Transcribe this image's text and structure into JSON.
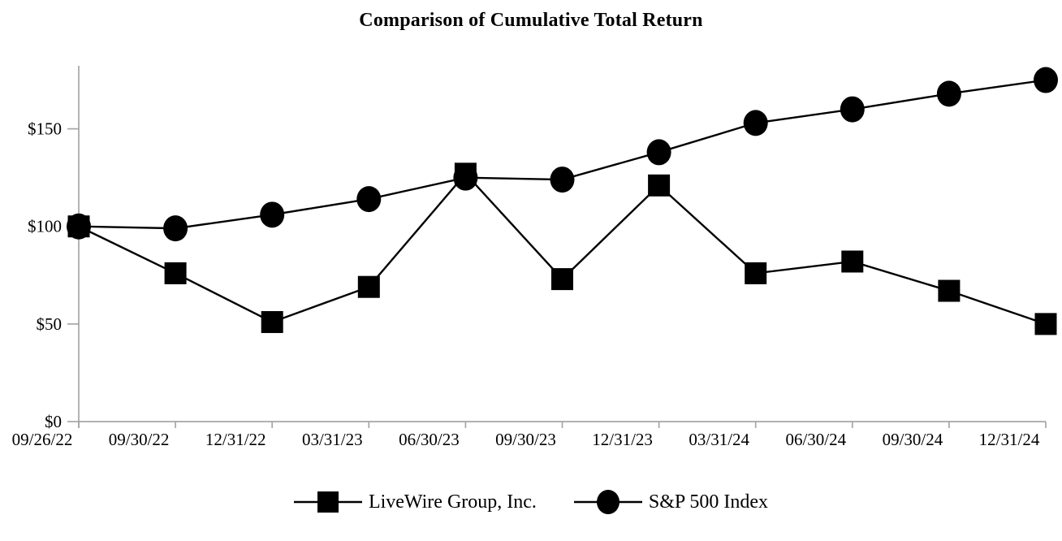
{
  "title": "Comparison of Cumulative Total Return",
  "chart_data": {
    "type": "line",
    "title": "Comparison of Cumulative Total Return",
    "categories": [
      "09/26/22",
      "09/30/22",
      "12/31/22",
      "03/31/23",
      "06/30/23",
      "09/30/23",
      "12/31/23",
      "03/31/24",
      "06/30/24",
      "09/30/24",
      "12/31/24"
    ],
    "series": [
      {
        "name": "LiveWire Group, Inc.",
        "marker": "square",
        "values": [
          100,
          76,
          51,
          69,
          127,
          73,
          121,
          76,
          82,
          67,
          50
        ]
      },
      {
        "name": "S&P 500 Index",
        "marker": "circle",
        "values": [
          100,
          99,
          106,
          114,
          125,
          124,
          138,
          153,
          160,
          168,
          175
        ]
      }
    ],
    "y_ticks": [
      {
        "label": "$0",
        "value": 0
      },
      {
        "label": "$50",
        "value": 50
      },
      {
        "label": "$100",
        "value": 100
      },
      {
        "label": "$150",
        "value": 150
      }
    ],
    "ylim": [
      0,
      182
    ],
    "xlabel": "",
    "ylabel": "",
    "grid": false,
    "legend_position": "bottom",
    "colors": {
      "series_line": "#000000",
      "marker_fill": "#000000",
      "axis": "#a6a6a6",
      "text": "#000000"
    }
  },
  "legend": {
    "items": [
      {
        "label": "LiveWire Group, Inc.",
        "marker": "square-icon"
      },
      {
        "label": "S&P 500 Index",
        "marker": "circle-icon"
      }
    ]
  }
}
